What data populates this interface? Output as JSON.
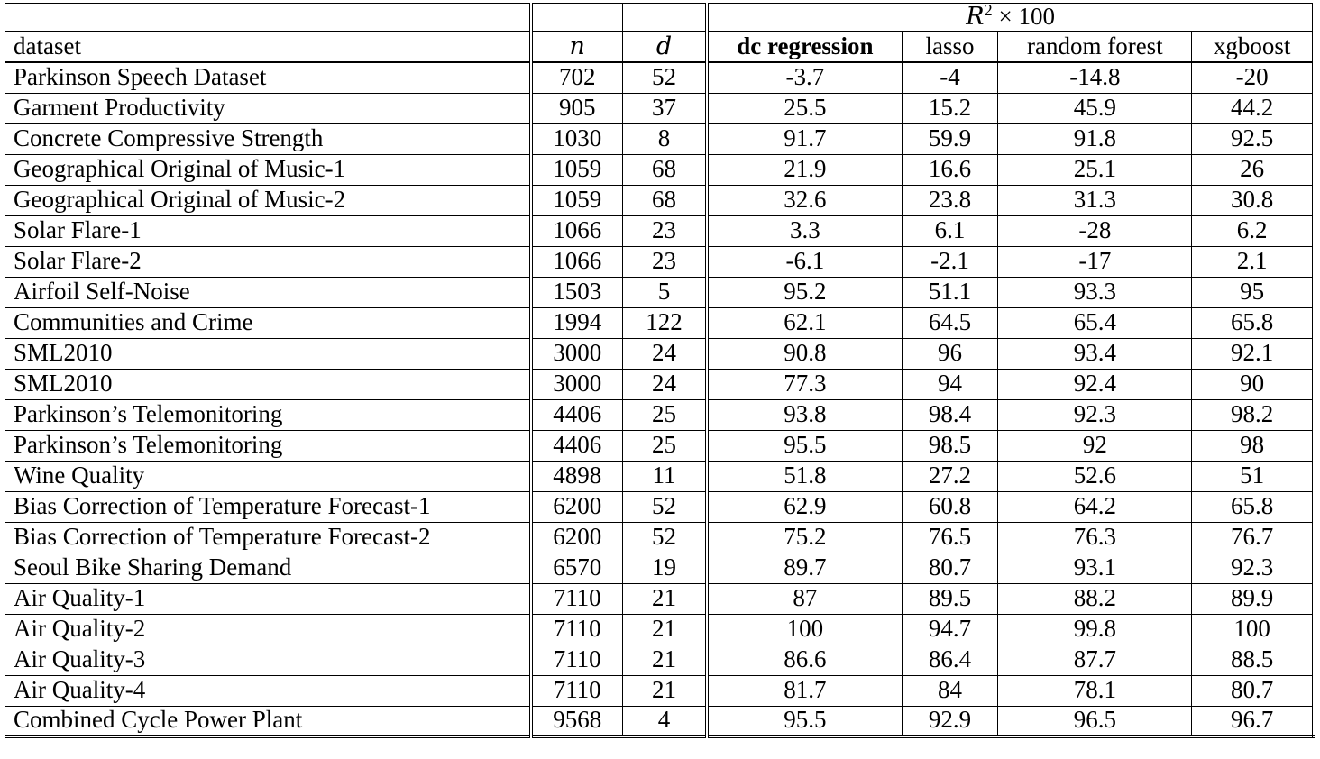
{
  "table": {
    "group_header": {
      "base": "R",
      "sup": "2",
      "times": " × 100"
    },
    "col_headers": {
      "dataset": "dataset",
      "n": "n",
      "d": "d",
      "dc": "dc regression",
      "lasso": "lasso",
      "rf": "random forest",
      "xgb": "xgboost"
    },
    "rows": [
      [
        "Parkinson Speech Dataset",
        "702",
        "52",
        "-3.7",
        "-4",
        "-14.8",
        "-20"
      ],
      [
        "Garment Productivity",
        "905",
        "37",
        "25.5",
        "15.2",
        "45.9",
        "44.2"
      ],
      [
        "Concrete Compressive Strength",
        "1030",
        "8",
        "91.7",
        "59.9",
        "91.8",
        "92.5"
      ],
      [
        "Geographical Original of Music-1",
        "1059",
        "68",
        "21.9",
        "16.6",
        "25.1",
        "26"
      ],
      [
        "Geographical Original of Music-2",
        "1059",
        "68",
        "32.6",
        "23.8",
        "31.3",
        "30.8"
      ],
      [
        "Solar Flare-1",
        "1066",
        "23",
        "3.3",
        "6.1",
        "-28",
        "6.2"
      ],
      [
        "Solar Flare-2",
        "1066",
        "23",
        "-6.1",
        "-2.1",
        "-17",
        "2.1"
      ],
      [
        "Airfoil Self-Noise",
        "1503",
        "5",
        "95.2",
        "51.1",
        "93.3",
        "95"
      ],
      [
        "Communities and Crime",
        "1994",
        "122",
        "62.1",
        "64.5",
        "65.4",
        "65.8"
      ],
      [
        "SML2010",
        "3000",
        "24",
        "90.8",
        "96",
        "93.4",
        "92.1"
      ],
      [
        "SML2010",
        "3000",
        "24",
        "77.3",
        "94",
        "92.4",
        "90"
      ],
      [
        "Parkinson’s Telemonitoring",
        "4406",
        "25",
        "93.8",
        "98.4",
        "92.3",
        "98.2"
      ],
      [
        "Parkinson’s Telemonitoring",
        "4406",
        "25",
        "95.5",
        "98.5",
        "92",
        "98"
      ],
      [
        "Wine Quality",
        "4898",
        "11",
        "51.8",
        "27.2",
        "52.6",
        "51"
      ],
      [
        "Bias Correction of Temperature Forecast-1",
        "6200",
        "52",
        "62.9",
        "60.8",
        "64.2",
        "65.8"
      ],
      [
        "Bias Correction of Temperature Forecast-2",
        "6200",
        "52",
        "75.2",
        "76.5",
        "76.3",
        "76.7"
      ],
      [
        "Seoul Bike Sharing Demand",
        "6570",
        "19",
        "89.7",
        "80.7",
        "93.1",
        "92.3"
      ],
      [
        "Air Quality-1",
        "7110",
        "21",
        "87",
        "89.5",
        "88.2",
        "89.9"
      ],
      [
        "Air Quality-2",
        "7110",
        "21",
        "100",
        "94.7",
        "99.8",
        "100"
      ],
      [
        "Air Quality-3",
        "7110",
        "21",
        "86.6",
        "86.4",
        "87.7",
        "88.5"
      ],
      [
        "Air Quality-4",
        "7110",
        "21",
        "81.7",
        "84",
        "78.1",
        "80.7"
      ],
      [
        "Combined Cycle Power Plant",
        "9568",
        "4",
        "95.5",
        "92.9",
        "96.5",
        "96.7"
      ]
    ]
  },
  "chart_data": {
    "type": "table",
    "title": "R2 x 100",
    "columns": [
      "dataset",
      "n",
      "d",
      "dc regression",
      "lasso",
      "random forest",
      "xgboost"
    ],
    "value_columns_group": "R2 x 100"
  }
}
